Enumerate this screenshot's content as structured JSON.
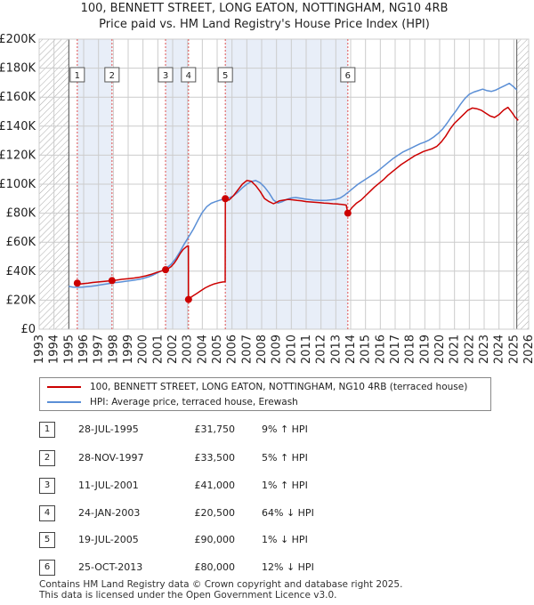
{
  "colors": {
    "property": "#cc0000",
    "hpi": "#5b8fd6",
    "band": "#e8eef8",
    "marker_line": "#e05050",
    "grid": "#cccccc",
    "hatch": "#aaaaaa"
  },
  "chart_data": {
    "type": "line",
    "title": "100, BENNETT STREET, LONG EATON, NOTTINGHAM, NG10 4RB",
    "subtitle": "Price paid vs. HM Land Registry's House Price Index (HPI)",
    "xlim": [
      1993,
      2026
    ],
    "ylim": [
      0,
      200000
    ],
    "x_ticks": [
      "1993",
      "1994",
      "1995",
      "1996",
      "1997",
      "1998",
      "1999",
      "2000",
      "2001",
      "2002",
      "2003",
      "2004",
      "2005",
      "2006",
      "2007",
      "2008",
      "2009",
      "2010",
      "2011",
      "2012",
      "2013",
      "2014",
      "2015",
      "2016",
      "2017",
      "2018",
      "2019",
      "2020",
      "2021",
      "2022",
      "2023",
      "2024",
      "2025",
      "2026"
    ],
    "y_ticks": [
      {
        "value": 0,
        "label": "£0"
      },
      {
        "value": 20000,
        "label": "£20K"
      },
      {
        "value": 40000,
        "label": "£40K"
      },
      {
        "value": 60000,
        "label": "£60K"
      },
      {
        "value": 80000,
        "label": "£80K"
      },
      {
        "value": 100000,
        "label": "£100K"
      },
      {
        "value": 120000,
        "label": "£120K"
      },
      {
        "value": 140000,
        "label": "£140K"
      },
      {
        "value": 160000,
        "label": "£160K"
      },
      {
        "value": 180000,
        "label": "£180K"
      },
      {
        "value": 200000,
        "label": "£200K"
      }
    ],
    "hatched_ranges": [
      [
        1993,
        1995.0
      ],
      [
        2025.2,
        2026
      ]
    ],
    "series": [
      {
        "name": "100, BENNETT STREET, LONG EATON, NOTTINGHAM, NG10 4RB (terraced house)",
        "key": "property",
        "x": [
          1995.57,
          1995.8,
          1996.0,
          1996.3,
          1996.6,
          1997.0,
          1997.4,
          1997.7,
          1997.91,
          1998.2,
          1998.6,
          1999.0,
          1999.4,
          1999.8,
          2000.2,
          2000.6,
          2001.0,
          2001.3,
          2001.52,
          2001.7,
          2001.9,
          2002.1,
          2002.3,
          2002.5,
          2002.7,
          2002.95,
          2003.06,
          2003.07,
          2003.3,
          2003.6,
          2003.9,
          2004.2,
          2004.5,
          2004.8,
          2005.1,
          2005.4,
          2005.54,
          2005.55,
          2005.8,
          2006.1,
          2006.4,
          2006.7,
          2007.0,
          2007.3,
          2007.6,
          2007.9,
          2008.2,
          2008.5,
          2008.8,
          2009.0,
          2009.2,
          2009.5,
          2009.8,
          2010.1,
          2010.4,
          2010.7,
          2011.0,
          2011.3,
          2011.6,
          2011.9,
          2012.2,
          2012.5,
          2012.8,
          2013.1,
          2013.4,
          2013.7,
          2013.81,
          2014.1,
          2014.4,
          2014.7,
          2015.0,
          2015.3,
          2015.6,
          2015.9,
          2016.2,
          2016.5,
          2016.8,
          2017.1,
          2017.4,
          2017.7,
          2018.0,
          2018.3,
          2018.6,
          2018.9,
          2019.2,
          2019.5,
          2019.8,
          2020.1,
          2020.4,
          2020.7,
          2021.0,
          2021.3,
          2021.6,
          2021.9,
          2022.2,
          2022.5,
          2022.8,
          2023.1,
          2023.4,
          2023.7,
          2024.0,
          2024.3,
          2024.6,
          2024.9,
          2025.1,
          2025.3
        ],
        "y": [
          31750,
          31200,
          31500,
          31800,
          32200,
          32600,
          33000,
          33300,
          33500,
          33800,
          34400,
          34800,
          35300,
          35900,
          36800,
          38000,
          39400,
          40300,
          41000,
          41800,
          43200,
          45500,
          48500,
          52000,
          55000,
          57000,
          57500,
          20500,
          22500,
          24500,
          26500,
          28500,
          30000,
          31200,
          32000,
          32600,
          32700,
          90000,
          89000,
          92000,
          96000,
          100000,
          102500,
          102000,
          99000,
          95000,
          90000,
          88000,
          86500,
          87500,
          88500,
          89000,
          89500,
          89200,
          88800,
          88500,
          88000,
          87700,
          87500,
          87300,
          87000,
          86800,
          86500,
          86300,
          86000,
          85600,
          80000,
          84000,
          87000,
          89000,
          92000,
          95000,
          98000,
          100500,
          103000,
          106000,
          108500,
          111000,
          113500,
          115500,
          117500,
          119500,
          121000,
          122500,
          123500,
          124500,
          126000,
          129000,
          133000,
          138000,
          142000,
          145000,
          148000,
          151000,
          152500,
          152000,
          151000,
          149000,
          147000,
          146000,
          148000,
          151000,
          153000,
          149000,
          146000,
          144000
        ]
      },
      {
        "name": "HPI: Average price, terraced house, Erewash",
        "key": "hpi",
        "x": [
          1995.0,
          1995.3,
          1995.6,
          1995.9,
          1996.2,
          1996.5,
          1996.8,
          1997.1,
          1997.4,
          1997.7,
          1998.0,
          1998.3,
          1998.6,
          1998.9,
          1999.2,
          1999.5,
          1999.8,
          2000.1,
          2000.4,
          2000.7,
          2001.0,
          2001.3,
          2001.6,
          2001.9,
          2002.2,
          2002.5,
          2002.8,
          2003.1,
          2003.4,
          2003.7,
          2004.0,
          2004.3,
          2004.6,
          2004.9,
          2005.2,
          2005.5,
          2005.8,
          2006.1,
          2006.4,
          2006.7,
          2007.0,
          2007.3,
          2007.6,
          2007.9,
          2008.2,
          2008.5,
          2008.8,
          2009.1,
          2009.4,
          2009.7,
          2010.0,
          2010.3,
          2010.6,
          2010.9,
          2011.2,
          2011.5,
          2011.8,
          2012.1,
          2012.4,
          2012.7,
          2013.0,
          2013.3,
          2013.6,
          2013.9,
          2014.2,
          2014.5,
          2014.8,
          2015.1,
          2015.4,
          2015.7,
          2016.0,
          2016.3,
          2016.6,
          2016.9,
          2017.2,
          2017.5,
          2017.8,
          2018.1,
          2018.4,
          2018.7,
          2019.0,
          2019.3,
          2019.6,
          2019.9,
          2020.2,
          2020.5,
          2020.8,
          2021.1,
          2021.4,
          2021.7,
          2022.0,
          2022.3,
          2022.6,
          2022.9,
          2023.2,
          2023.5,
          2023.8,
          2024.1,
          2024.4,
          2024.7,
          2025.0,
          2025.2
        ],
        "y": [
          29500,
          29000,
          28900,
          29000,
          29300,
          29600,
          30000,
          30500,
          31000,
          31500,
          32000,
          32300,
          32700,
          33100,
          33500,
          34000,
          34500,
          35300,
          36200,
          37400,
          39000,
          40400,
          42200,
          44800,
          48500,
          53500,
          59000,
          64000,
          69000,
          75000,
          80500,
          84500,
          86800,
          88000,
          89000,
          89800,
          90500,
          92000,
          94500,
          97500,
          100000,
          101800,
          102500,
          101000,
          98000,
          94000,
          89000,
          87000,
          88000,
          89500,
          90500,
          90800,
          90300,
          89800,
          89400,
          89000,
          88900,
          88800,
          88900,
          89200,
          89600,
          90500,
          92500,
          95000,
          97500,
          100000,
          102000,
          104000,
          106000,
          108000,
          110500,
          113000,
          115500,
          118000,
          120000,
          122000,
          123500,
          125000,
          126500,
          128000,
          129000,
          130500,
          132500,
          135000,
          138000,
          142000,
          146500,
          150500,
          155000,
          159000,
          162000,
          163500,
          164500,
          165500,
          164500,
          164000,
          165000,
          166500,
          168000,
          169500,
          167000,
          165000
        ]
      }
    ],
    "sales": [
      {
        "id": "1",
        "date": "28-JUL-1995",
        "x": 1995.57,
        "price": 31750,
        "price_label": "£31,750",
        "hpi_label": "9% ↑ HPI"
      },
      {
        "id": "2",
        "date": "28-NOV-1997",
        "x": 1997.91,
        "price": 33500,
        "price_label": "£33,500",
        "hpi_label": "5% ↑ HPI"
      },
      {
        "id": "3",
        "date": "11-JUL-2001",
        "x": 2001.52,
        "price": 41000,
        "price_label": "£41,000",
        "hpi_label": "1% ↑ HPI"
      },
      {
        "id": "4",
        "date": "24-JAN-2003",
        "x": 2003.07,
        "price": 20500,
        "price_label": "£20,500",
        "hpi_label": "64% ↓ HPI"
      },
      {
        "id": "5",
        "date": "19-JUL-2005",
        "x": 2005.55,
        "price": 90000,
        "price_label": "£90,000",
        "hpi_label": "1% ↓ HPI"
      },
      {
        "id": "6",
        "date": "25-OCT-2013",
        "x": 2013.81,
        "price": 80000,
        "price_label": "£80,000",
        "hpi_label": "12% ↓ HPI"
      }
    ],
    "legend_position": "below"
  },
  "legend": {
    "property_label": "100, BENNETT STREET, LONG EATON, NOTTINGHAM, NG10 4RB (terraced house)",
    "hpi_label": "HPI: Average price, terraced house, Erewash"
  },
  "footer": {
    "line1": "Contains HM Land Registry data © Crown copyright and database right 2025.",
    "line2": "This data is licensed under the Open Government Licence v3.0."
  }
}
